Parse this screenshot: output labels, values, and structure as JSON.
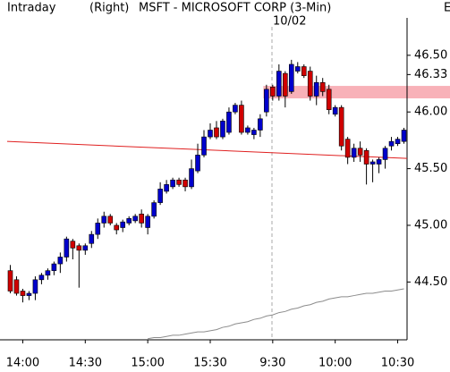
{
  "chart_data": {
    "type": "candlestick",
    "header": "Intraday",
    "side_label": "(Right)",
    "title": "MSFT - MICROSOFT CORP (3-Min)",
    "date_label": "10/02",
    "corner_label": "E",
    "categories": [
      null,
      null,
      "14:00",
      null,
      null,
      null,
      null,
      null,
      null,
      null,
      null,
      null,
      "14:30",
      null,
      null,
      null,
      null,
      null,
      null,
      null,
      null,
      null,
      "15:00",
      null,
      null,
      null,
      null,
      null,
      null,
      null,
      null,
      null,
      "15:30",
      null,
      null,
      null,
      null,
      null,
      null,
      null,
      null,
      null,
      "9:30",
      null,
      null,
      null,
      null,
      null,
      null,
      null,
      null,
      null,
      "10:00",
      null,
      null,
      null,
      null,
      null,
      null,
      null,
      null,
      null,
      "10:30",
      null
    ],
    "open": [
      44.6,
      44.52,
      44.42,
      44.38,
      44.4,
      44.52,
      44.56,
      44.6,
      44.66,
      44.72,
      44.86,
      44.82,
      44.78,
      44.84,
      44.92,
      45.02,
      45.08,
      45.0,
      44.98,
      45.02,
      45.04,
      45.1,
      44.98,
      45.08,
      45.2,
      45.3,
      45.34,
      45.4,
      45.4,
      45.34,
      45.48,
      45.62,
      45.78,
      45.86,
      45.78,
      45.82,
      46.0,
      46.06,
      45.82,
      45.8,
      45.84,
      46.0,
      46.22,
      46.14,
      46.34,
      46.18,
      46.36,
      46.4,
      46.36,
      46.14,
      46.26,
      46.2,
      45.98,
      46.04,
      45.76,
      45.6,
      45.68,
      45.66,
      45.54,
      45.54,
      45.58,
      45.7,
      45.72,
      45.74
    ],
    "high": [
      44.65,
      44.55,
      44.44,
      44.42,
      44.55,
      44.58,
      44.62,
      44.68,
      44.76,
      44.9,
      44.88,
      44.84,
      44.84,
      44.95,
      45.06,
      45.12,
      45.1,
      45.02,
      45.05,
      45.08,
      45.1,
      45.14,
      45.1,
      45.22,
      45.38,
      45.4,
      45.42,
      45.42,
      45.42,
      45.58,
      45.72,
      45.84,
      45.9,
      45.92,
      45.94,
      46.04,
      46.08,
      46.1,
      45.88,
      45.86,
      45.98,
      46.24,
      46.24,
      46.42,
      46.36,
      46.46,
      46.44,
      46.42,
      46.4,
      46.32,
      46.3,
      46.24,
      46.06,
      46.06,
      45.78,
      45.72,
      45.74,
      45.68,
      45.58,
      45.6,
      45.7,
      45.78,
      45.78,
      45.86
    ],
    "low": [
      44.4,
      44.38,
      44.32,
      44.34,
      44.34,
      44.48,
      44.52,
      44.56,
      44.58,
      44.68,
      44.7,
      44.45,
      44.74,
      44.8,
      44.88,
      44.98,
      45.0,
      44.92,
      44.94,
      45.0,
      45.02,
      44.98,
      44.92,
      45.06,
      45.18,
      45.28,
      45.32,
      45.34,
      45.3,
      45.32,
      45.46,
      45.6,
      45.76,
      45.76,
      45.76,
      45.8,
      45.98,
      45.8,
      45.8,
      45.76,
      45.78,
      45.96,
      46.1,
      46.1,
      46.04,
      46.16,
      46.34,
      46.3,
      46.1,
      46.06,
      46.14,
      45.98,
      45.96,
      45.66,
      45.54,
      45.56,
      45.56,
      45.36,
      45.38,
      45.46,
      45.5,
      45.66,
      45.7,
      45.72
    ],
    "close": [
      44.42,
      44.4,
      44.38,
      44.4,
      44.52,
      44.56,
      44.6,
      44.66,
      44.72,
      44.88,
      44.8,
      44.78,
      44.82,
      44.92,
      45.02,
      45.08,
      45.02,
      44.96,
      45.03,
      45.06,
      45.08,
      45.02,
      45.08,
      45.2,
      45.32,
      45.36,
      45.4,
      45.36,
      45.34,
      45.5,
      45.62,
      45.78,
      45.84,
      45.78,
      45.92,
      46.0,
      46.06,
      45.82,
      45.86,
      45.84,
      45.94,
      46.2,
      46.14,
      46.36,
      46.14,
      46.42,
      46.4,
      46.32,
      46.14,
      46.26,
      46.18,
      46.02,
      46.04,
      45.7,
      45.6,
      45.68,
      45.62,
      45.54,
      45.56,
      45.58,
      45.68,
      45.74,
      45.76,
      45.84
    ],
    "up_color": "#0000cc",
    "down_color": "#d00000",
    "moving_average": {
      "color": "#8c8c8c",
      "values": [
        null,
        null,
        null,
        null,
        null,
        null,
        null,
        null,
        null,
        null,
        null,
        null,
        null,
        null,
        null,
        null,
        null,
        null,
        null,
        null,
        null,
        null,
        44.0,
        44.01,
        44.01,
        44.02,
        44.03,
        44.03,
        44.04,
        44.05,
        44.06,
        44.06,
        44.07,
        44.08,
        44.1,
        44.11,
        44.13,
        44.14,
        44.15,
        44.17,
        44.18,
        44.2,
        44.21,
        44.23,
        44.24,
        44.26,
        44.27,
        44.29,
        44.3,
        44.32,
        44.33,
        44.35,
        44.36,
        44.37,
        44.37,
        44.38,
        44.39,
        44.4,
        44.4,
        44.41,
        44.42,
        44.42,
        44.43,
        44.44
      ]
    },
    "trendline": {
      "color": "#e02020",
      "values": [
        45.74,
        45.59
      ]
    },
    "highlight_band": {
      "color": "#f7a8b0",
      "range": [
        46.12,
        46.23
      ]
    },
    "ylim": [
      43.99,
      46.83
    ],
    "yticks": [
      {
        "value": 44.5,
        "label": "44.50"
      },
      {
        "value": 45,
        "label": "45.00"
      },
      {
        "value": 45.5,
        "label": "45.50"
      },
      {
        "value": 46,
        "label": "46.00"
      },
      46.33,
      {
        "value": 46.5,
        "label": "46.50"
      }
    ]
  }
}
